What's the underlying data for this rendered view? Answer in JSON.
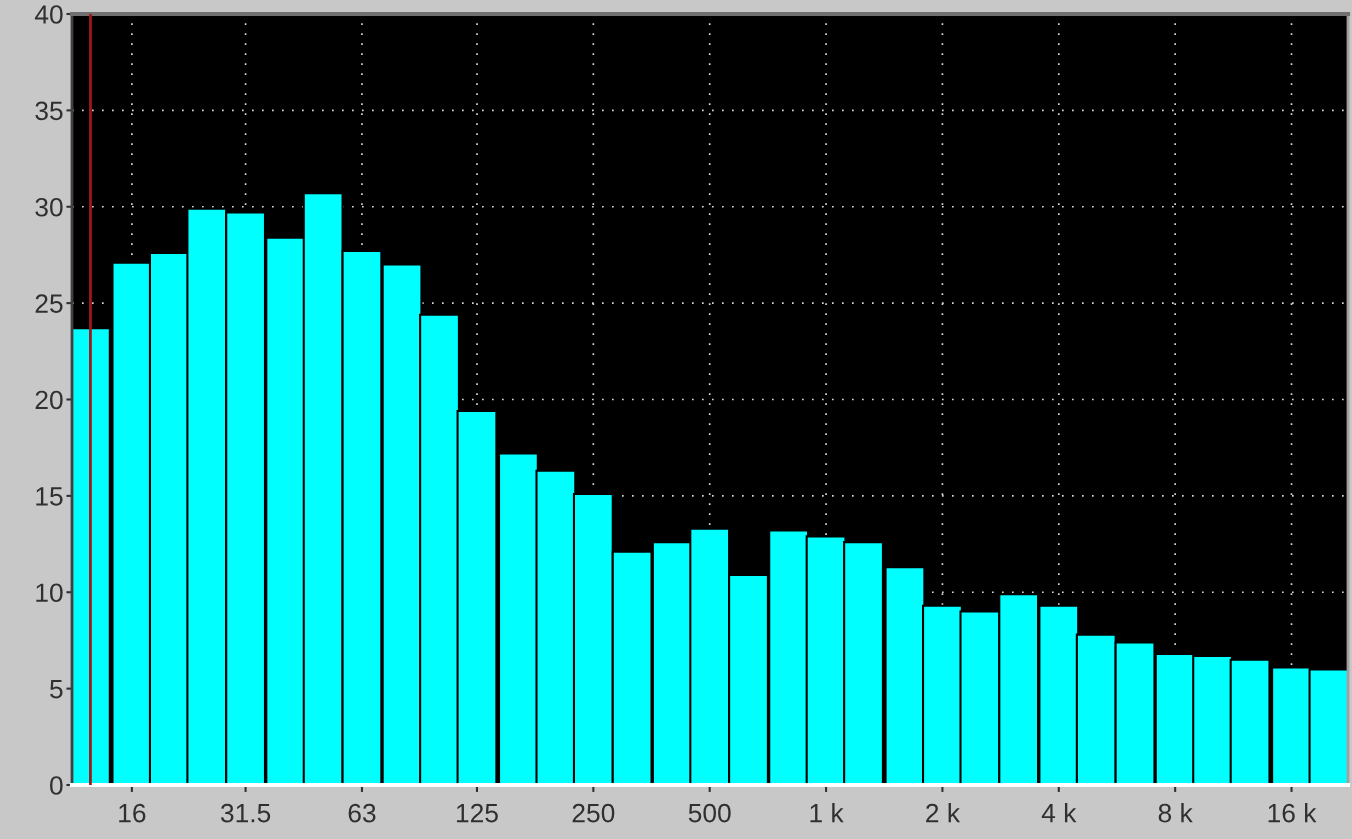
{
  "chart_data": {
    "type": "bar",
    "x": [
      12.5,
      16,
      20,
      25,
      31.5,
      40,
      50,
      63,
      80,
      100,
      125,
      160,
      200,
      250,
      315,
      400,
      500,
      630,
      800,
      1000,
      1250,
      1600,
      2000,
      2500,
      3150,
      4000,
      5000,
      6300,
      8000,
      10000,
      12500,
      16000,
      20000
    ],
    "values": [
      23.7,
      27.1,
      27.6,
      29.9,
      29.7,
      28.4,
      30.7,
      27.7,
      27.0,
      24.4,
      19.4,
      17.2,
      16.3,
      15.1,
      12.1,
      12.6,
      13.3,
      10.9,
      13.2,
      12.9,
      12.6,
      11.3,
      9.3,
      9.0,
      9.9,
      9.3,
      7.8,
      7.4,
      6.8,
      6.7,
      6.5,
      6.1,
      6.0
    ],
    "color": "#00ffff",
    "log": "x",
    "xlim": [
      11.2,
      22400
    ],
    "xticks": [
      16,
      31.5,
      63,
      125,
      250,
      500,
      {
        "value": 1000,
        "label": "1 k"
      },
      {
        "value": 2000,
        "label": "2 k"
      },
      {
        "value": 4000,
        "label": "4 k"
      },
      {
        "value": 8000,
        "label": "8 k"
      },
      {
        "value": 16000,
        "label": "16 k"
      }
    ],
    "ylim": [
      0,
      40
    ],
    "yticks": [
      0,
      5,
      10,
      15,
      20,
      25,
      30,
      35,
      40
    ],
    "grid": true,
    "ref_lines": [
      {
        "axis": "x",
        "value": 12.5,
        "color": "#a01818"
      }
    ]
  }
}
